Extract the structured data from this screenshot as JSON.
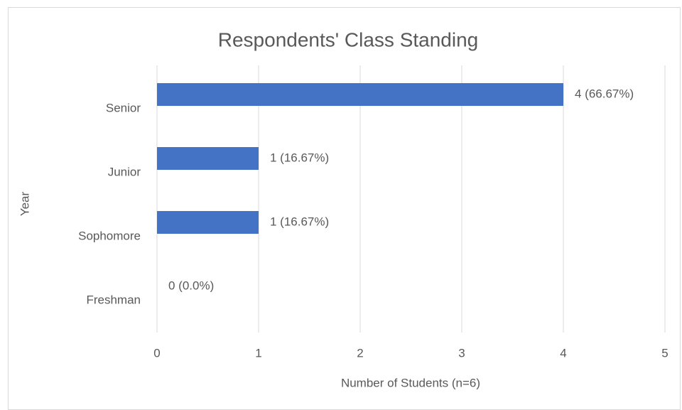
{
  "chart_data": {
    "type": "bar",
    "orientation": "horizontal",
    "title": "Respondents' Class Standing",
    "x_label": "Number of Students (n=6)",
    "y_label": "Year",
    "categories": [
      "Senior",
      "Junior",
      "Sophomore",
      "Freshman"
    ],
    "values": [
      4,
      1,
      1,
      0
    ],
    "value_labels": [
      "4 (66.67%)",
      "1 (16.67%)",
      "1 (16.67%)",
      "0 (0.0%)"
    ],
    "color": "#4472c4",
    "xlim": [
      0,
      5
    ],
    "xticks": [
      0,
      1,
      2,
      3,
      4,
      5
    ],
    "grid": true
  }
}
